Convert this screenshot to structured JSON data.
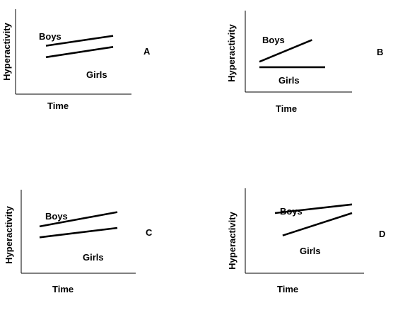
{
  "panels": [
    {
      "id": "A",
      "letter": "A",
      "xlabel": "Time",
      "ylabel": "Hyperactivity",
      "series": [
        {
          "name": "Boys",
          "x": [
            0,
            1
          ],
          "y": [
            0.68,
            0.92
          ]
        },
        {
          "name": "Girls",
          "x": [
            0,
            1
          ],
          "y": [
            0.4,
            0.65
          ]
        }
      ]
    },
    {
      "id": "B",
      "letter": "B",
      "xlabel": "Time",
      "ylabel": "Hyperactivity",
      "series": [
        {
          "name": "Boys",
          "x": [
            0,
            0.8
          ],
          "y": [
            0.4,
            0.8
          ]
        },
        {
          "name": "Girls",
          "x": [
            0,
            1
          ],
          "y": [
            0.3,
            0.3
          ]
        }
      ]
    },
    {
      "id": "C",
      "letter": "C",
      "xlabel": "Time",
      "ylabel": "Hyperactivity",
      "series": [
        {
          "name": "Boys",
          "x": [
            0,
            1
          ],
          "y": [
            0.53,
            0.82
          ]
        },
        {
          "name": "Girls",
          "x": [
            0,
            1
          ],
          "y": [
            0.31,
            0.5
          ]
        }
      ]
    },
    {
      "id": "D",
      "letter": "D",
      "xlabel": "Time",
      "ylabel": "Hyperactivity",
      "series": [
        {
          "name": "Boys",
          "x": [
            0,
            1
          ],
          "y": [
            0.68,
            0.85
          ]
        },
        {
          "name": "Girls",
          "x": [
            0.1,
            1
          ],
          "y": [
            0.24,
            0.68
          ]
        }
      ]
    }
  ]
}
